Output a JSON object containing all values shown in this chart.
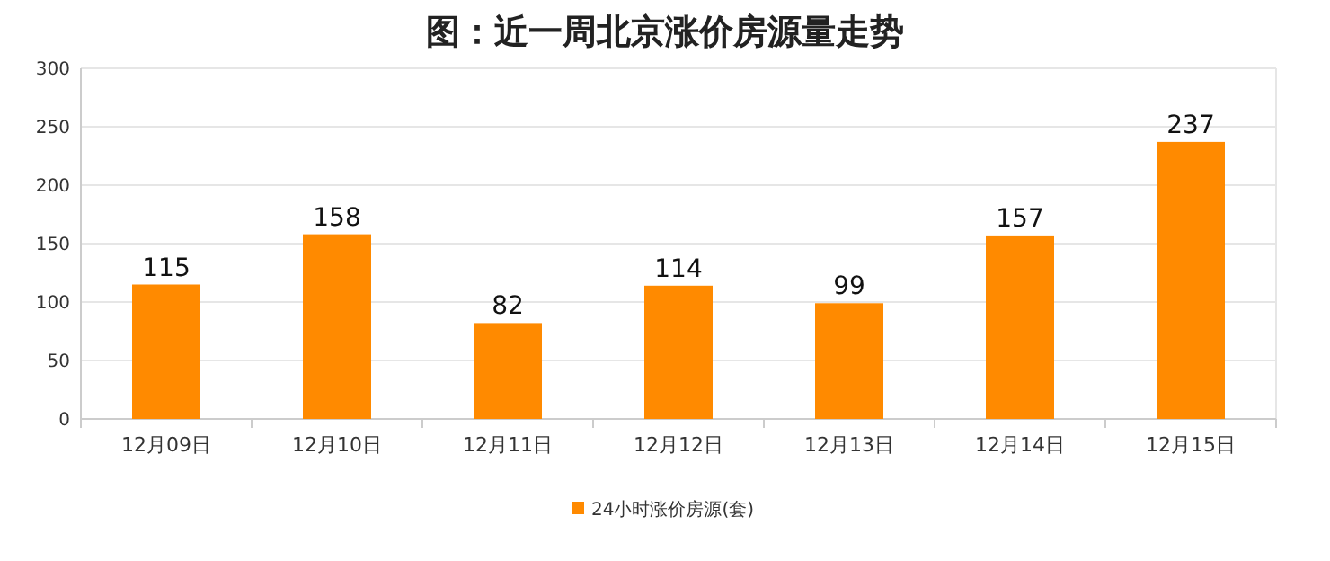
{
  "chart_data": {
    "type": "bar",
    "title": "图：近一周北京涨价房源量走势",
    "categories": [
      "12月09日",
      "12月10日",
      "12月11日",
      "12月12日",
      "12月13日",
      "12月14日",
      "12月15日"
    ],
    "series": [
      {
        "name": "24小时涨价房源(套)",
        "color": "#ff8a00",
        "values": [
          115,
          158,
          82,
          114,
          99,
          157,
          237
        ]
      }
    ],
    "ylim": [
      0,
      300
    ],
    "yticks": [
      0,
      50,
      100,
      150,
      200,
      250,
      300
    ],
    "grid": "y",
    "legend": "bottom",
    "data_labels": true
  }
}
